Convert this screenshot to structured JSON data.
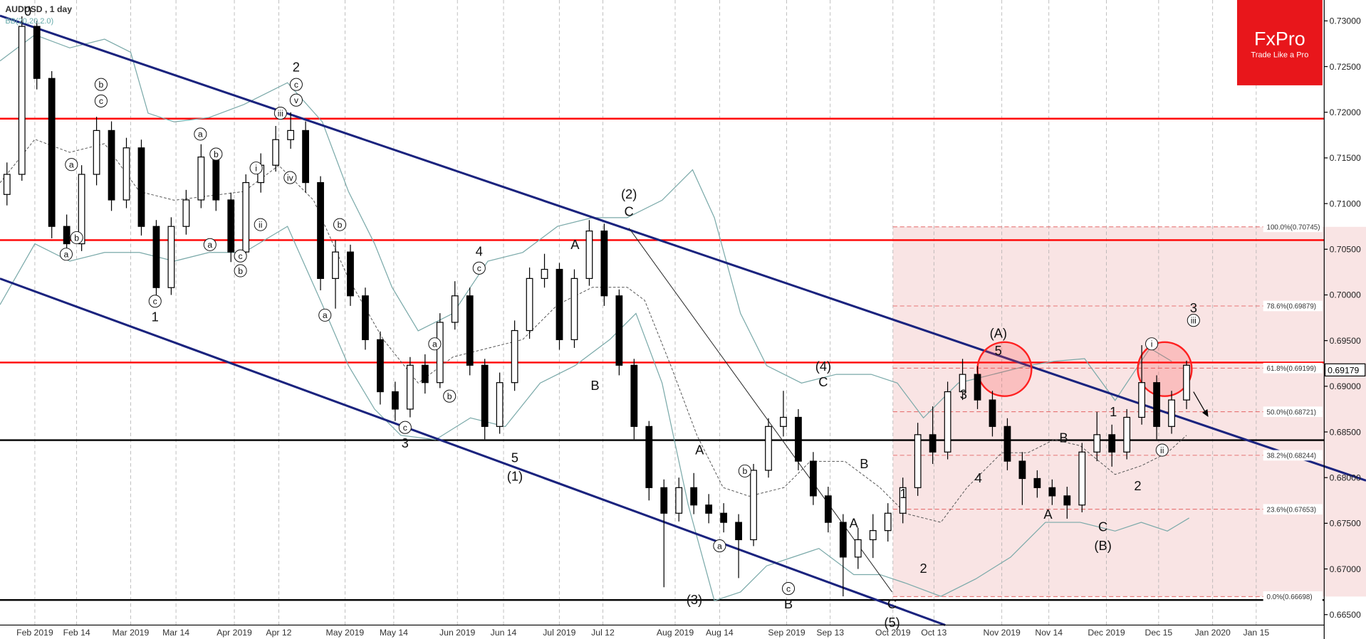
{
  "chart_data": {
    "type": "candlestick",
    "title": "AUDUSD , 1 day",
    "subtitle": "BB(20,20,2.0)",
    "logo": {
      "name": "FxPro",
      "tagline": "Trade Like a Pro"
    },
    "ylim": [
      0.665,
      0.73
    ],
    "yticks": [
      {
        "value": 0.73,
        "label": "0.73000"
      },
      {
        "value": 0.725,
        "label": "0.72500"
      },
      {
        "value": 0.72,
        "label": "0.72000"
      },
      {
        "value": 0.715,
        "label": "0.71500"
      },
      {
        "value": 0.71,
        "label": "0.71000"
      },
      {
        "value": 0.705,
        "label": "0.70500"
      },
      {
        "value": 0.7,
        "label": "0.70000"
      },
      {
        "value": 0.695,
        "label": "0.69500"
      },
      {
        "value": 0.69,
        "label": "0.69000"
      },
      {
        "value": 0.685,
        "label": "0.68500"
      },
      {
        "value": 0.68,
        "label": "0.68000"
      },
      {
        "value": 0.675,
        "label": "0.67500"
      },
      {
        "value": 0.67,
        "label": "0.67000"
      },
      {
        "value": 0.665,
        "label": "0.66500"
      }
    ],
    "x_labels": [
      "Feb 2019",
      "Feb 14",
      "Mar 2019",
      "Mar 14",
      "Apr 2019",
      "Apr 12",
      "May 2019",
      "May 14",
      "Jun 2019",
      "Jun 14",
      "Jul 2019",
      "Jul 12",
      "Aug 2019",
      "Aug 14",
      "Sep 2019",
      "Sep 13",
      "Oct 2019",
      "Oct 13",
      "Nov 2019",
      "Nov 14",
      "Dec 2019",
      "Dec 15",
      "Jan 2020",
      "Jan 15"
    ],
    "candles": [
      [
        0.711,
        0.7145,
        0.7098,
        0.7132
      ],
      [
        0.7132,
        0.7305,
        0.7125,
        0.7294
      ],
      [
        0.7294,
        0.73,
        0.7225,
        0.7237
      ],
      [
        0.7237,
        0.7245,
        0.7062,
        0.7075
      ],
      [
        0.7075,
        0.7088,
        0.7045,
        0.7056
      ],
      [
        0.7056,
        0.7142,
        0.7048,
        0.7132
      ],
      [
        0.7132,
        0.7195,
        0.712,
        0.718
      ],
      [
        0.718,
        0.719,
        0.7092,
        0.7104
      ],
      [
        0.7104,
        0.7172,
        0.7095,
        0.7161
      ],
      [
        0.7161,
        0.717,
        0.7065,
        0.7075
      ],
      [
        0.7075,
        0.7082,
        0.6995,
        0.7008
      ],
      [
        0.7008,
        0.7085,
        0.7,
        0.7075
      ],
      [
        0.7075,
        0.7115,
        0.7066,
        0.7104
      ],
      [
        0.7104,
        0.7165,
        0.7095,
        0.7151
      ],
      [
        0.7151,
        0.716,
        0.7092,
        0.7104
      ],
      [
        0.7104,
        0.7112,
        0.7036,
        0.7047
      ],
      [
        0.7047,
        0.7132,
        0.704,
        0.7123
      ],
      [
        0.7123,
        0.7155,
        0.7112,
        0.7142
      ],
      [
        0.7142,
        0.7185,
        0.7135,
        0.717
      ],
      [
        0.717,
        0.72,
        0.716,
        0.718
      ],
      [
        0.718,
        0.719,
        0.7112,
        0.7123
      ],
      [
        0.7123,
        0.713,
        0.7005,
        0.7018
      ],
      [
        0.7018,
        0.706,
        0.6985,
        0.7047
      ],
      [
        0.7047,
        0.7055,
        0.6988,
        0.6999
      ],
      [
        0.6999,
        0.7008,
        0.694,
        0.6951
      ],
      [
        0.6951,
        0.696,
        0.688,
        0.6894
      ],
      [
        0.6894,
        0.6905,
        0.6862,
        0.6875
      ],
      [
        0.6875,
        0.6932,
        0.6866,
        0.6923
      ],
      [
        0.6923,
        0.6935,
        0.6892,
        0.6904
      ],
      [
        0.6904,
        0.698,
        0.6898,
        0.697
      ],
      [
        0.697,
        0.7015,
        0.6962,
        0.6999
      ],
      [
        0.6999,
        0.7008,
        0.6912,
        0.6923
      ],
      [
        0.6923,
        0.693,
        0.6842,
        0.6856
      ],
      [
        0.6856,
        0.6915,
        0.6848,
        0.6904
      ],
      [
        0.6904,
        0.6972,
        0.6895,
        0.6961
      ],
      [
        0.6961,
        0.703,
        0.6952,
        0.7018
      ],
      [
        0.7018,
        0.7045,
        0.7008,
        0.7028
      ],
      [
        0.7028,
        0.7035,
        0.694,
        0.6951
      ],
      [
        0.6951,
        0.7028,
        0.6942,
        0.7018
      ],
      [
        0.7018,
        0.7082,
        0.701,
        0.707
      ],
      [
        0.707,
        0.7078,
        0.6988,
        0.6999
      ],
      [
        0.6999,
        0.7006,
        0.6912,
        0.6923
      ],
      [
        0.6923,
        0.693,
        0.6842,
        0.6856
      ],
      [
        0.6856,
        0.6862,
        0.6775,
        0.6789
      ],
      [
        0.6789,
        0.6798,
        0.668,
        0.6761
      ],
      [
        0.6761,
        0.68,
        0.6752,
        0.6789
      ],
      [
        0.6789,
        0.6805,
        0.676,
        0.677
      ],
      [
        0.677,
        0.6782,
        0.675,
        0.6761
      ],
      [
        0.6761,
        0.6772,
        0.674,
        0.6751
      ],
      [
        0.6751,
        0.676,
        0.669,
        0.6732
      ],
      [
        0.6732,
        0.6815,
        0.6725,
        0.6808
      ],
      [
        0.6808,
        0.6865,
        0.68,
        0.6856
      ],
      [
        0.6856,
        0.6895,
        0.6845,
        0.6866
      ],
      [
        0.6866,
        0.6875,
        0.6808,
        0.6818
      ],
      [
        0.6818,
        0.6828,
        0.677,
        0.678
      ],
      [
        0.678,
        0.679,
        0.674,
        0.6751
      ],
      [
        0.6751,
        0.676,
        0.667,
        0.6713
      ],
      [
        0.6713,
        0.6745,
        0.67,
        0.6732
      ],
      [
        0.6732,
        0.676,
        0.6712,
        0.6742
      ],
      [
        0.6742,
        0.6772,
        0.673,
        0.6761
      ],
      [
        0.6761,
        0.68,
        0.675,
        0.6789
      ],
      [
        0.6789,
        0.686,
        0.678,
        0.6847
      ],
      [
        0.6847,
        0.6878,
        0.6815,
        0.6828
      ],
      [
        0.6828,
        0.6905,
        0.682,
        0.6894
      ],
      [
        0.6894,
        0.693,
        0.6885,
        0.6913
      ],
      [
        0.6913,
        0.6922,
        0.6875,
        0.6885
      ],
      [
        0.6885,
        0.6895,
        0.6845,
        0.6856
      ],
      [
        0.6856,
        0.6865,
        0.6808,
        0.6818
      ],
      [
        0.6818,
        0.6828,
        0.677,
        0.6799
      ],
      [
        0.6799,
        0.6808,
        0.6778,
        0.6789
      ],
      [
        0.6789,
        0.6798,
        0.677,
        0.678
      ],
      [
        0.678,
        0.679,
        0.6755,
        0.677
      ],
      [
        0.677,
        0.6838,
        0.6762,
        0.6828
      ],
      [
        0.6828,
        0.6872,
        0.6818,
        0.6847
      ],
      [
        0.6847,
        0.6858,
        0.6812,
        0.6828
      ],
      [
        0.6828,
        0.6875,
        0.682,
        0.6866
      ],
      [
        0.6866,
        0.6945,
        0.6858,
        0.6904
      ],
      [
        0.6904,
        0.6912,
        0.6842,
        0.6856
      ],
      [
        0.6856,
        0.6895,
        0.6848,
        0.6885
      ],
      [
        0.6885,
        0.6928,
        0.6875,
        0.6923
      ]
    ],
    "bull_color": "#ffffff",
    "bear_color": "#000000",
    "levels": [
      {
        "value": 0.7193,
        "color": "#ff0000"
      },
      {
        "value": 0.706,
        "color": "#ff0000"
      },
      {
        "value": 0.6926,
        "color": "#ff0000"
      },
      {
        "value": 0.6841,
        "color": "#000000"
      },
      {
        "value": 0.6666,
        "color": "#000000"
      }
    ],
    "fib_levels": [
      {
        "value": 0.70745,
        "label": "100.0%(0.70745)"
      },
      {
        "value": 0.69879,
        "label": "78.6%(0.69879)"
      },
      {
        "value": 0.69199,
        "label": "61.8%(0.69199)"
      },
      {
        "value": 0.68721,
        "label": "50.0%(0.68721)"
      },
      {
        "value": 0.68244,
        "label": "38.2%(0.68244)"
      },
      {
        "value": 0.67653,
        "label": "23.6%(0.67653)"
      },
      {
        "value": 0.66698,
        "label": "0.0%(0.66698)"
      }
    ],
    "last_price": {
      "value": 0.69179,
      "label": "0.69179"
    },
    "annotations": [
      "0",
      "2",
      "(2)",
      "C",
      "4",
      "A",
      "B",
      "1",
      "3",
      "5",
      "(1)",
      "A",
      "(3)",
      "(4)",
      "C",
      "B",
      "A",
      "B",
      "C",
      "(5)",
      "1",
      "2",
      "3",
      "4",
      "(A)",
      "5",
      "A",
      "B",
      "C",
      "(B)",
      "1",
      "2",
      "3"
    ],
    "circled_labels": [
      "a",
      "b",
      "a",
      "b",
      "c",
      "c",
      "a",
      "b",
      "a",
      "c",
      "b",
      "i",
      "ii",
      "iii",
      "iv",
      "v",
      "c",
      "b",
      "c",
      "a",
      "c",
      "a",
      "b",
      "a",
      "b",
      "c",
      "i",
      "ii",
      "iii"
    ]
  }
}
